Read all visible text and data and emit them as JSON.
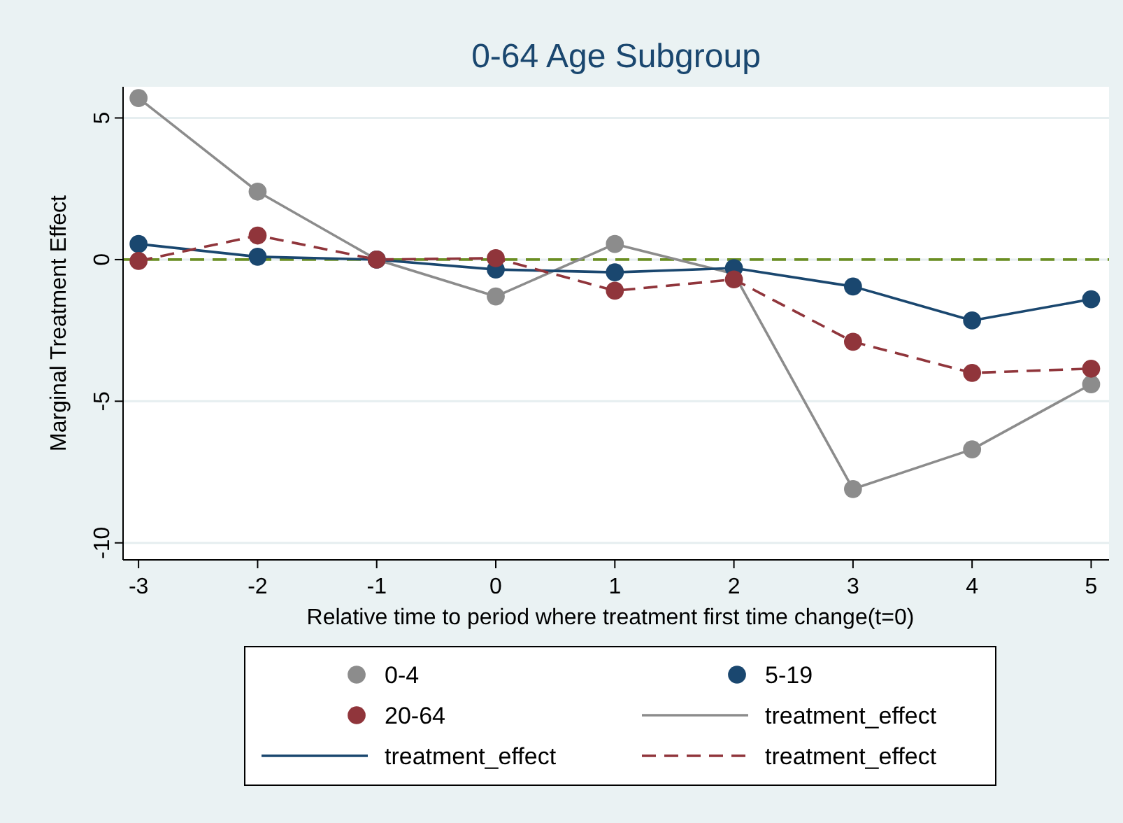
{
  "chart_data": {
    "type": "line",
    "title": "0-64 Age Subgroup",
    "xlabel": "Relative time to period where treatment first time change(t=0)",
    "ylabel": "Marginal Treatment Effect",
    "x": [
      -3,
      -2,
      -1,
      0,
      1,
      2,
      3,
      4,
      5
    ],
    "xlim": [
      -3.13,
      5.15
    ],
    "xticks": [
      -3,
      -2,
      -1,
      0,
      1,
      2,
      3,
      4,
      5
    ],
    "ylim": [
      -10.6,
      6.1
    ],
    "yticks": [
      -10,
      -5,
      0,
      5
    ],
    "grid": "y",
    "legend": "bottom",
    "ref_lines": [
      {
        "axis": "y",
        "value": 0,
        "color": "#6b8e23",
        "line_style": "dashed"
      }
    ],
    "series": [
      {
        "name": "0-4",
        "type": "scatter",
        "marker": "circle",
        "color": "#8c8c8c",
        "values": [
          5.7,
          2.4,
          0,
          -1.3,
          0.55,
          null,
          -8.1,
          -6.7,
          -4.4
        ]
      },
      {
        "name": "5-19",
        "type": "scatter",
        "marker": "circle",
        "color": "#1a476f",
        "values": [
          0.55,
          0.1,
          0,
          -0.35,
          -0.45,
          -0.3,
          -0.95,
          -2.15,
          -1.4
        ]
      },
      {
        "name": "20-64",
        "type": "scatter",
        "marker": "circle",
        "color": "#90353b",
        "values": [
          -0.05,
          0.85,
          0,
          0.05,
          -1.1,
          -0.7,
          -2.9,
          -4.0,
          -3.85
        ]
      },
      {
        "name": "treatment_effect",
        "marker": "none",
        "line_style": "solid",
        "color": "#8c8c8c",
        "values": [
          5.7,
          2.4,
          0,
          -1.3,
          0.55,
          -0.5,
          -8.1,
          -6.7,
          -4.4
        ]
      },
      {
        "name": "treatment_effect",
        "marker": "none",
        "line_style": "solid",
        "color": "#1a476f",
        "values": [
          0.55,
          0.1,
          0,
          -0.35,
          -0.45,
          -0.3,
          -0.95,
          -2.15,
          -1.4
        ]
      },
      {
        "name": "treatment_effect",
        "marker": "none",
        "line_style": "dashed",
        "color": "#90353b",
        "values": [
          -0.05,
          0.85,
          0,
          0.05,
          -1.1,
          -0.7,
          -2.9,
          -4.0,
          -3.85
        ]
      }
    ]
  }
}
